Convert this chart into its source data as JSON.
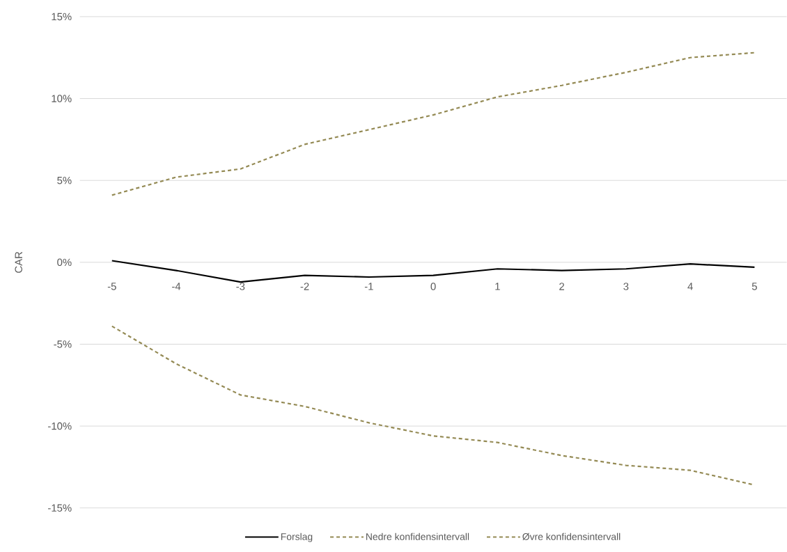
{
  "chart_data": {
    "type": "line",
    "ylabel": "CAR",
    "categories": [
      "-5",
      "-4",
      "-3",
      "-2",
      "-1",
      "0",
      "1",
      "2",
      "3",
      "4",
      "5"
    ],
    "series": [
      {
        "name": "Forslag",
        "color": "#000000",
        "line_style": "solid",
        "values": [
          0.1,
          -0.5,
          -1.2,
          -0.8,
          -0.9,
          -0.8,
          -0.4,
          -0.5,
          -0.4,
          -0.1,
          -0.3
        ]
      },
      {
        "name": "Nedre konfidensintervall",
        "color": "#948a54",
        "line_style": "dashed",
        "values": [
          -3.9,
          -6.2,
          -8.1,
          -8.8,
          -9.8,
          -10.6,
          -11.0,
          -11.8,
          -12.4,
          -12.7,
          -13.6
        ]
      },
      {
        "name": "Øvre konfidensintervall",
        "color": "#948a54",
        "line_style": "dashed",
        "values": [
          4.1,
          5.2,
          5.7,
          7.2,
          8.1,
          9.0,
          10.1,
          10.8,
          11.6,
          12.5,
          12.8
        ]
      }
    ],
    "ylim": [
      -15,
      15
    ],
    "yticks": [
      {
        "value": -15,
        "label": "-15%"
      },
      {
        "value": -10,
        "label": "-10%"
      },
      {
        "value": -5,
        "label": "-5%"
      },
      {
        "value": 0,
        "label": "0%"
      },
      {
        "value": 5,
        "label": "5%"
      },
      {
        "value": 10,
        "label": "10%"
      },
      {
        "value": 15,
        "label": "15%"
      }
    ],
    "grid": "y",
    "legend": "bottom",
    "marker": "none"
  }
}
